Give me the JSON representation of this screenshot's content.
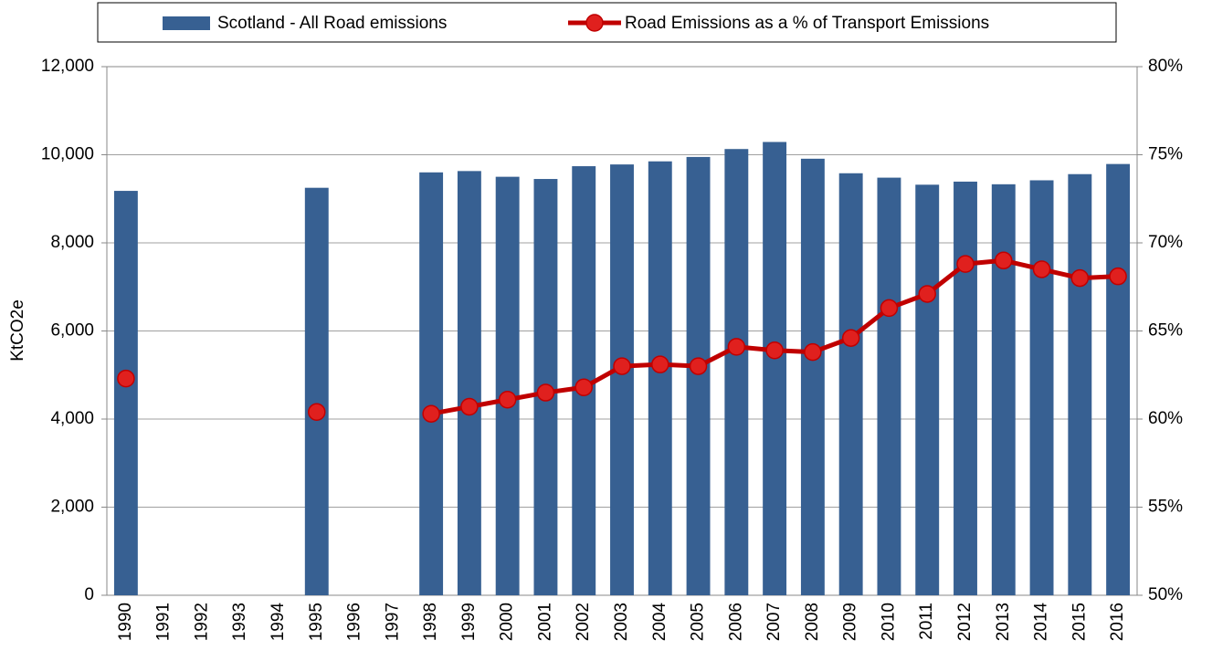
{
  "chart_data": {
    "type": "bar_line",
    "categories": [
      "1990",
      "1991",
      "1992",
      "1993",
      "1994",
      "1995",
      "1996",
      "1997",
      "1998",
      "1999",
      "2000",
      "2001",
      "2002",
      "2003",
      "2004",
      "2005",
      "2006",
      "2007",
      "2008",
      "2009",
      "2010",
      "2011",
      "2012",
      "2013",
      "2014",
      "2015",
      "2016"
    ],
    "y_label": "KtCO2e",
    "series": [
      {
        "name": "Scotland - All Road emissions",
        "type": "bar",
        "color": "#376092",
        "axis": "y",
        "values": [
          9180,
          null,
          null,
          null,
          null,
          9250,
          null,
          null,
          9600,
          9630,
          9500,
          9450,
          9740,
          9780,
          9850,
          9950,
          10130,
          10290,
          9910,
          9580,
          9480,
          9320,
          9390,
          9330,
          9420,
          9560,
          9790
        ]
      },
      {
        "name": "Road Emissions as a % of Transport Emissions",
        "type": "line",
        "color": "#c00000",
        "axis": "y2",
        "values": [
          62.3,
          null,
          null,
          null,
          null,
          60.4,
          null,
          null,
          60.3,
          60.7,
          61.1,
          61.5,
          61.8,
          63.0,
          63.1,
          63.0,
          64.1,
          63.9,
          63.8,
          64.6,
          66.3,
          67.1,
          68.8,
          69.0,
          68.5,
          68.0,
          68.1
        ]
      }
    ],
    "ylim": [
      0,
      12000
    ],
    "yticks": [
      0,
      {
        "value": 2000,
        "label": "2,000"
      },
      {
        "value": 4000,
        "label": "4,000"
      },
      {
        "value": 6000,
        "label": "6,000"
      },
      {
        "value": 8000,
        "label": "8,000"
      },
      {
        "value": 10000,
        "label": "10,000"
      },
      {
        "value": 12000,
        "label": "12,000"
      }
    ],
    "y2lim": [
      50,
      80
    ],
    "y2ticks": [
      {
        "value": 50,
        "label": "50%"
      },
      {
        "value": 55,
        "label": "55%"
      },
      {
        "value": 60,
        "label": "60%"
      },
      {
        "value": 65,
        "label": "65%"
      },
      {
        "value": 70,
        "label": "70%"
      },
      {
        "value": 75,
        "label": "75%"
      },
      {
        "value": 80,
        "label": "80%"
      }
    ],
    "grid": true,
    "legend": "top"
  }
}
